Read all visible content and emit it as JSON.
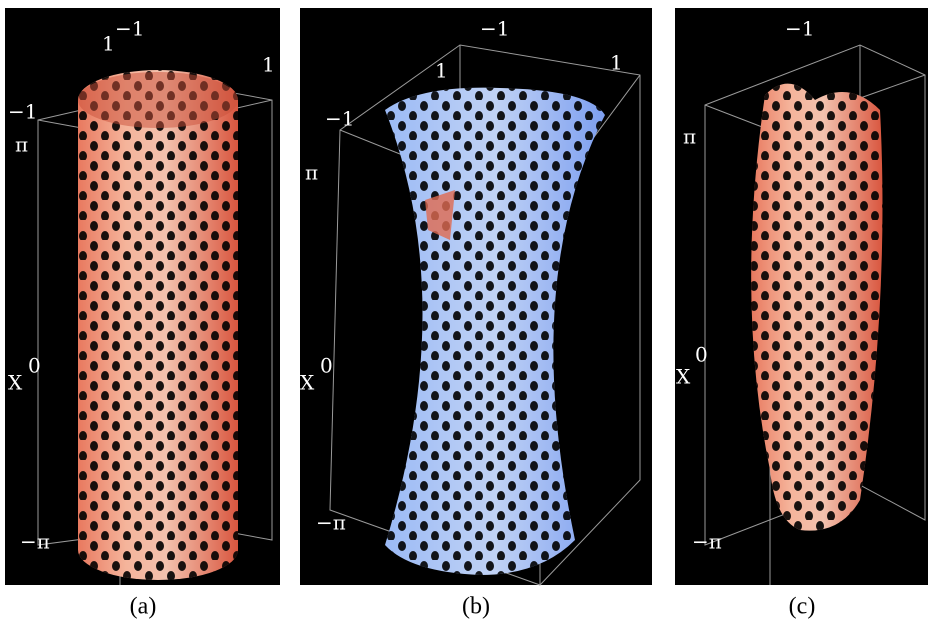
{
  "panels": [
    {
      "caption": "(a)",
      "axis_labels": [
        "1",
        "−1",
        "1",
        "−1",
        "π",
        "X",
        "0",
        "−π"
      ]
    },
    {
      "caption": "(b)",
      "axis_labels": [
        "−1",
        "1",
        "1",
        "−1",
        "π",
        "X",
        "0",
        "−π"
      ]
    },
    {
      "caption": "(c)",
      "axis_labels": [
        "−1",
        "π",
        "X",
        "0",
        "−π"
      ]
    }
  ]
}
